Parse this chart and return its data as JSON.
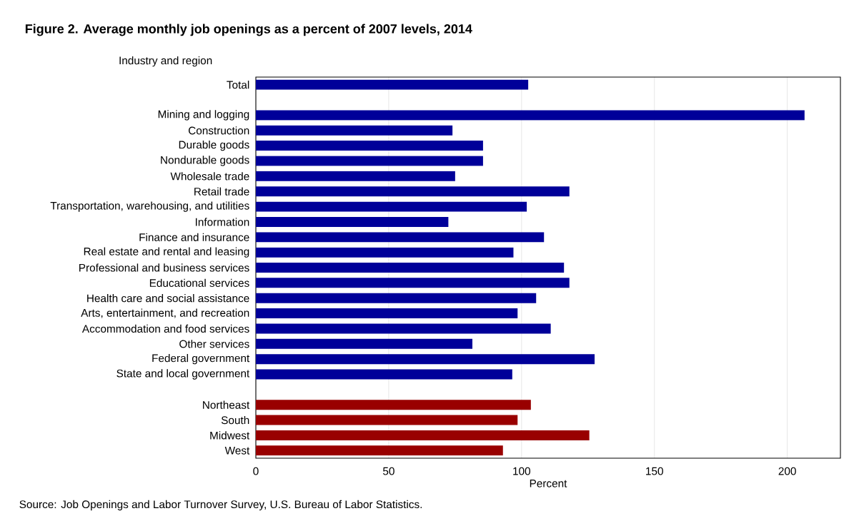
{
  "chart_data": {
    "type": "bar",
    "orientation": "horizontal",
    "title": "Figure 2. Average monthly job openings as a percent of 2007 levels, 2014",
    "ylabel": "Industry and region",
    "xlabel": "Percent",
    "categories": [
      "Total",
      null,
      "Mining and logging",
      "Construction",
      "Durable goods",
      "Nondurable goods",
      "Wholesale trade",
      "Retail trade",
      "Transportation, warehousing, and utilities",
      "Information",
      "Finance and insurance",
      "Real estate and rental and leasing",
      "Professional and business services",
      "Educational services",
      "Health care and social assistance",
      "Arts, entertainment, and recreation",
      "Accommodation and food services",
      "Other services",
      "Federal government",
      "State and local government",
      null,
      "Northeast",
      "South",
      "Midwest",
      "West"
    ],
    "values": [
      102.5,
      null,
      206.5,
      74,
      85.5,
      85.5,
      75,
      118,
      102,
      72.5,
      108.5,
      97,
      116,
      118,
      105.5,
      98.5,
      111,
      81.5,
      127.5,
      96.5,
      null,
      103.5,
      98.5,
      125.5,
      93
    ],
    "colors": [
      "#000099",
      null,
      "#000099",
      "#000099",
      "#000099",
      "#000099",
      "#000099",
      "#000099",
      "#000099",
      "#000099",
      "#000099",
      "#000099",
      "#000099",
      "#000099",
      "#000099",
      "#000099",
      "#000099",
      "#000099",
      "#000099",
      "#000099",
      null,
      "#990000",
      "#990000",
      "#990000",
      "#990000"
    ],
    "xlim": [
      0,
      220
    ],
    "xticks": [
      0,
      50,
      100,
      150,
      200
    ],
    "grid": "x",
    "annotations": [
      "Source: Job Openings and Labor Turnover Survey, U.S. Bureau of Labor Statistics."
    ]
  }
}
